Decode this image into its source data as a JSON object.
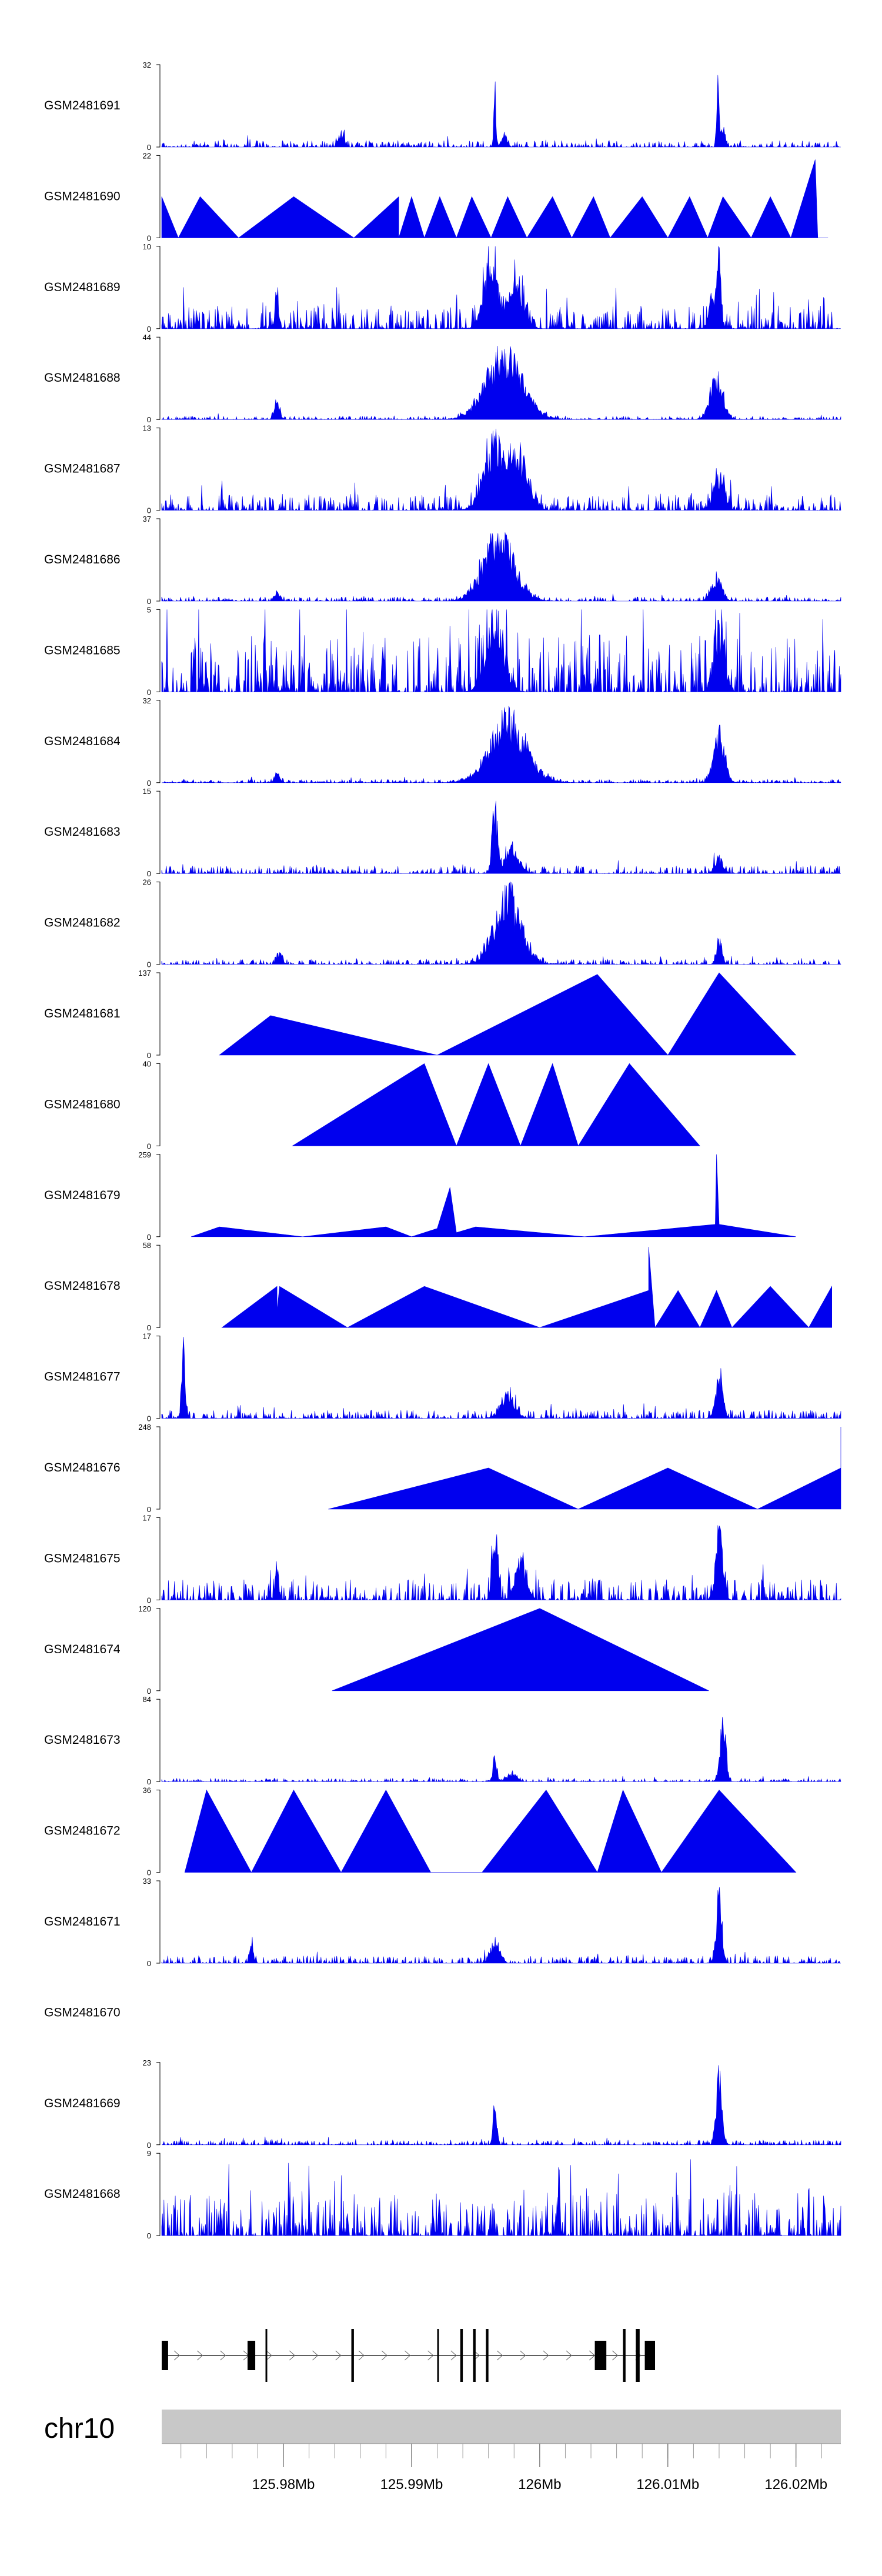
{
  "chart_data": {
    "type": "area",
    "title": "",
    "chromosome": "chr10",
    "xlabel": "",
    "xlim": [
      125.9705,
      126.0235
    ],
    "x_ticks": [
      {
        "value": 125.98,
        "label": "125.98Mb"
      },
      {
        "value": 125.99,
        "label": "125.99Mb"
      },
      {
        "value": 126.0,
        "label": "126Mb"
      },
      {
        "value": 126.01,
        "label": "126.01Mb"
      },
      {
        "value": 126.02,
        "label": "126.02Mb"
      }
    ],
    "minor_tick_step": 0.002,
    "colors": {
      "signal": "#0000ee",
      "axis_bar": "#c8c8c8",
      "gene": "#000000"
    },
    "gene_model": {
      "start": 125.9705,
      "end": 126.009,
      "strand": "+",
      "exons": [
        {
          "start": 125.9705,
          "end": 125.971
        },
        {
          "start": 125.9772,
          "end": 125.9778
        },
        {
          "start": 125.9786,
          "end": 125.9787
        },
        {
          "start": 125.9853,
          "end": 125.9855
        },
        {
          "start": 125.992,
          "end": 125.9921
        },
        {
          "start": 125.9938,
          "end": 125.994
        },
        {
          "start": 125.9948,
          "end": 125.995
        },
        {
          "start": 125.9958,
          "end": 125.996
        },
        {
          "start": 126.0043,
          "end": 126.0052
        },
        {
          "start": 126.0065,
          "end": 126.0067
        },
        {
          "start": 126.0075,
          "end": 126.0078
        },
        {
          "start": 126.0082,
          "end": 126.009
        }
      ]
    },
    "series": [
      {
        "name": "GSM2481691",
        "ymax": 32,
        "style": "dense",
        "noise": 0.08,
        "seed": 11,
        "peaks": [
          {
            "x": 125.9845,
            "h": 0.2,
            "w": 0.0003
          },
          {
            "x": 125.9965,
            "h": 0.92,
            "w": 0.00012
          },
          {
            "x": 125.9972,
            "h": 0.2,
            "w": 0.0003
          },
          {
            "x": 126.0139,
            "h": 1.0,
            "w": 0.00012
          },
          {
            "x": 126.0143,
            "h": 0.3,
            "w": 0.00025
          }
        ]
      },
      {
        "name": "GSM2481690",
        "ymax": 22,
        "style": "sparse",
        "xs": [
          125.9705,
          125.9718,
          125.9735,
          125.9765,
          125.9808,
          125.9855,
          125.989,
          125.989,
          125.99,
          125.991,
          125.9922,
          125.9935,
          125.9947,
          125.9962,
          125.9975,
          125.999,
          126.001,
          126.0025,
          126.0042,
          126.0055,
          126.008,
          126.01,
          126.0117,
          126.0131,
          126.0143,
          126.0165,
          126.018,
          126.0196,
          126.0215,
          126.0217,
          126.0225
        ],
        "ys": [
          0.5,
          0.0,
          0.5,
          0.0,
          0.5,
          0.0,
          0.5,
          0.0,
          0.5,
          0.0,
          0.5,
          0.0,
          0.5,
          0.0,
          0.5,
          0.0,
          0.5,
          0.0,
          0.5,
          0.0,
          0.5,
          0.0,
          0.5,
          0.0,
          0.5,
          0.0,
          0.5,
          0.0,
          0.95,
          0.0,
          0.0
        ]
      },
      {
        "name": "GSM2481689",
        "ymax": 10,
        "style": "dense",
        "noise": 0.28,
        "seed": 23,
        "peaks": [
          {
            "x": 125.9795,
            "h": 0.55,
            "w": 0.0002
          },
          {
            "x": 125.9962,
            "h": 0.9,
            "w": 0.0008
          },
          {
            "x": 125.9982,
            "h": 0.7,
            "w": 0.0008
          },
          {
            "x": 126.014,
            "h": 1.0,
            "w": 0.0002
          },
          {
            "x": 126.0135,
            "h": 0.5,
            "w": 0.0004
          }
        ]
      },
      {
        "name": "GSM2481688",
        "ymax": 44,
        "style": "dense",
        "noise": 0.04,
        "seed": 31,
        "peaks": [
          {
            "x": 125.9795,
            "h": 0.28,
            "w": 0.0003
          },
          {
            "x": 125.9972,
            "h": 0.95,
            "w": 0.002
          },
          {
            "x": 126.0138,
            "h": 0.6,
            "w": 0.0007
          }
        ]
      },
      {
        "name": "GSM2481687",
        "ymax": 13,
        "style": "dense",
        "noise": 0.2,
        "seed": 37,
        "peaks": [
          {
            "x": 125.9965,
            "h": 1.0,
            "w": 0.0012
          },
          {
            "x": 125.9985,
            "h": 0.7,
            "w": 0.001
          },
          {
            "x": 126.014,
            "h": 0.55,
            "w": 0.0006
          }
        ]
      },
      {
        "name": "GSM2481686",
        "ymax": 37,
        "style": "dense",
        "noise": 0.05,
        "seed": 41,
        "peaks": [
          {
            "x": 125.9795,
            "h": 0.15,
            "w": 0.0003
          },
          {
            "x": 125.9968,
            "h": 0.95,
            "w": 0.0017
          },
          {
            "x": 126.0138,
            "h": 0.35,
            "w": 0.0006
          }
        ]
      },
      {
        "name": "GSM2481685",
        "ymax": 5,
        "style": "dense",
        "noise": 0.7,
        "seed": 47,
        "peaks": [
          {
            "x": 125.9965,
            "h": 1.0,
            "w": 0.001
          },
          {
            "x": 126.014,
            "h": 0.9,
            "w": 0.0006
          }
        ]
      },
      {
        "name": "GSM2481684",
        "ymax": 32,
        "style": "dense",
        "noise": 0.04,
        "seed": 53,
        "peaks": [
          {
            "x": 125.9795,
            "h": 0.12,
            "w": 0.0003
          },
          {
            "x": 125.9975,
            "h": 0.95,
            "w": 0.002
          },
          {
            "x": 126.014,
            "h": 0.7,
            "w": 0.0006
          }
        ]
      },
      {
        "name": "GSM2481683",
        "ymax": 15,
        "style": "dense",
        "noise": 0.1,
        "seed": 59,
        "peaks": [
          {
            "x": 125.9965,
            "h": 1.0,
            "w": 0.0003
          },
          {
            "x": 125.9978,
            "h": 0.35,
            "w": 0.0008
          },
          {
            "x": 126.014,
            "h": 0.2,
            "w": 0.0005
          }
        ]
      },
      {
        "name": "GSM2481682",
        "ymax": 26,
        "style": "dense",
        "noise": 0.06,
        "seed": 61,
        "peaks": [
          {
            "x": 125.9797,
            "h": 0.15,
            "w": 0.0003
          },
          {
            "x": 125.9975,
            "h": 1.0,
            "w": 0.0015
          },
          {
            "x": 126.014,
            "h": 0.35,
            "w": 0.0003
          }
        ]
      },
      {
        "name": "GSM2481681",
        "ymax": 137,
        "style": "sparse",
        "xs": [
          125.975,
          125.979,
          125.992,
          126.0045,
          126.01,
          126.014,
          126.02
        ],
        "ys": [
          0.0,
          0.48,
          0.0,
          0.98,
          0.0,
          1.0,
          0.0
        ]
      },
      {
        "name": "GSM2481680",
        "ymax": 40,
        "style": "sparse",
        "xs": [
          125.9807,
          125.991,
          125.9935,
          125.996,
          125.9985,
          126.001,
          126.003,
          126.007,
          126.0125
        ],
        "ys": [
          0.0,
          1.0,
          0.0,
          1.0,
          0.0,
          1.0,
          0.0,
          1.0,
          0.0
        ]
      },
      {
        "name": "GSM2481679",
        "ymax": 259,
        "style": "sparse",
        "xs": [
          125.9728,
          125.975,
          125.9815,
          125.988,
          125.99,
          125.992,
          125.993,
          125.9935,
          125.995,
          126.0035,
          126.0137,
          126.0138,
          126.014,
          126.02
        ],
        "ys": [
          0.0,
          0.12,
          0.0,
          0.12,
          0.0,
          0.1,
          0.6,
          0.05,
          0.12,
          0.0,
          0.15,
          1.0,
          0.15,
          0.0
        ]
      },
      {
        "name": "GSM2481678",
        "ymax": 58,
        "style": "sparse",
        "xs": [
          125.9752,
          125.9795,
          125.9795,
          125.9797,
          125.985,
          125.991,
          126.0,
          126.0085,
          126.0085,
          126.009,
          126.0108,
          126.0125,
          126.0138,
          126.015,
          126.018,
          126.021,
          126.0228
        ],
        "ys": [
          0.0,
          0.5,
          0.2,
          0.5,
          0.0,
          0.5,
          0.0,
          0.45,
          0.98,
          0.0,
          0.45,
          0.0,
          0.45,
          0.0,
          0.5,
          0.0,
          0.5
        ]
      },
      {
        "name": "GSM2481677",
        "ymax": 17,
        "style": "dense",
        "noise": 0.1,
        "seed": 71,
        "peaks": [
          {
            "x": 125.9722,
            "h": 1.0,
            "w": 0.0002
          },
          {
            "x": 125.9975,
            "h": 0.3,
            "w": 0.0008
          },
          {
            "x": 126.014,
            "h": 0.6,
            "w": 0.0004
          }
        ]
      },
      {
        "name": "GSM2481676",
        "ymax": 248,
        "style": "sparse",
        "xs": [
          125.9835,
          125.996,
          126.003,
          126.01,
          126.017,
          126.0235,
          126.0235
        ],
        "ys": [
          0.0,
          0.5,
          0.0,
          0.5,
          0.0,
          0.5,
          1.0
        ]
      },
      {
        "name": "GSM2481675",
        "ymax": 17,
        "style": "dense",
        "noise": 0.25,
        "seed": 79,
        "peaks": [
          {
            "x": 125.9795,
            "h": 0.4,
            "w": 0.0002
          },
          {
            "x": 125.9965,
            "h": 0.95,
            "w": 0.0003
          },
          {
            "x": 125.9985,
            "h": 0.6,
            "w": 0.0006
          },
          {
            "x": 126.014,
            "h": 1.0,
            "w": 0.0004
          }
        ]
      },
      {
        "name": "GSM2481674",
        "ymax": 120,
        "style": "sparse",
        "xs": [
          125.9838,
          126.0,
          126.0132
        ],
        "ys": [
          0.0,
          1.0,
          0.0
        ]
      },
      {
        "name": "GSM2481673",
        "ymax": 84,
        "style": "dense",
        "noise": 0.04,
        "seed": 83,
        "peaks": [
          {
            "x": 125.9965,
            "h": 0.4,
            "w": 0.0002
          },
          {
            "x": 125.9978,
            "h": 0.12,
            "w": 0.0005
          },
          {
            "x": 126.0143,
            "h": 1.0,
            "w": 0.0003
          }
        ]
      },
      {
        "name": "GSM2481672",
        "ymax": 36,
        "style": "sparse",
        "xs": [
          125.9723,
          125.974,
          125.9775,
          125.9808,
          125.9845,
          125.988,
          125.9915,
          125.9955,
          126.0005,
          126.0045,
          126.0065,
          126.0095,
          126.014,
          126.02
        ],
        "ys": [
          0.0,
          1.0,
          0.0,
          1.0,
          0.0,
          1.0,
          0.0,
          0.0,
          1.0,
          0.0,
          1.0,
          0.0,
          1.0,
          0.0
        ]
      },
      {
        "name": "GSM2481671",
        "ymax": 33,
        "style": "dense",
        "noise": 0.09,
        "seed": 89,
        "peaks": [
          {
            "x": 125.9775,
            "h": 0.3,
            "w": 0.0002
          },
          {
            "x": 125.9965,
            "h": 0.3,
            "w": 0.0005
          },
          {
            "x": 126.014,
            "h": 1.0,
            "w": 0.0003
          }
        ]
      },
      {
        "name": "GSM2481670",
        "ymax": null,
        "style": "empty"
      },
      {
        "name": "GSM2481669",
        "ymax": 23,
        "style": "dense",
        "noise": 0.06,
        "seed": 97,
        "peaks": [
          {
            "x": 125.9965,
            "h": 0.6,
            "w": 0.0002
          },
          {
            "x": 126.014,
            "h": 1.0,
            "w": 0.0003
          }
        ]
      },
      {
        "name": "GSM2481668",
        "ymax": 9,
        "style": "dense",
        "noise": 0.55,
        "seed": 101,
        "peaks": [
          {
            "x": 126.0015,
            "h": 1.0,
            "w": 0.0001
          }
        ]
      }
    ]
  }
}
